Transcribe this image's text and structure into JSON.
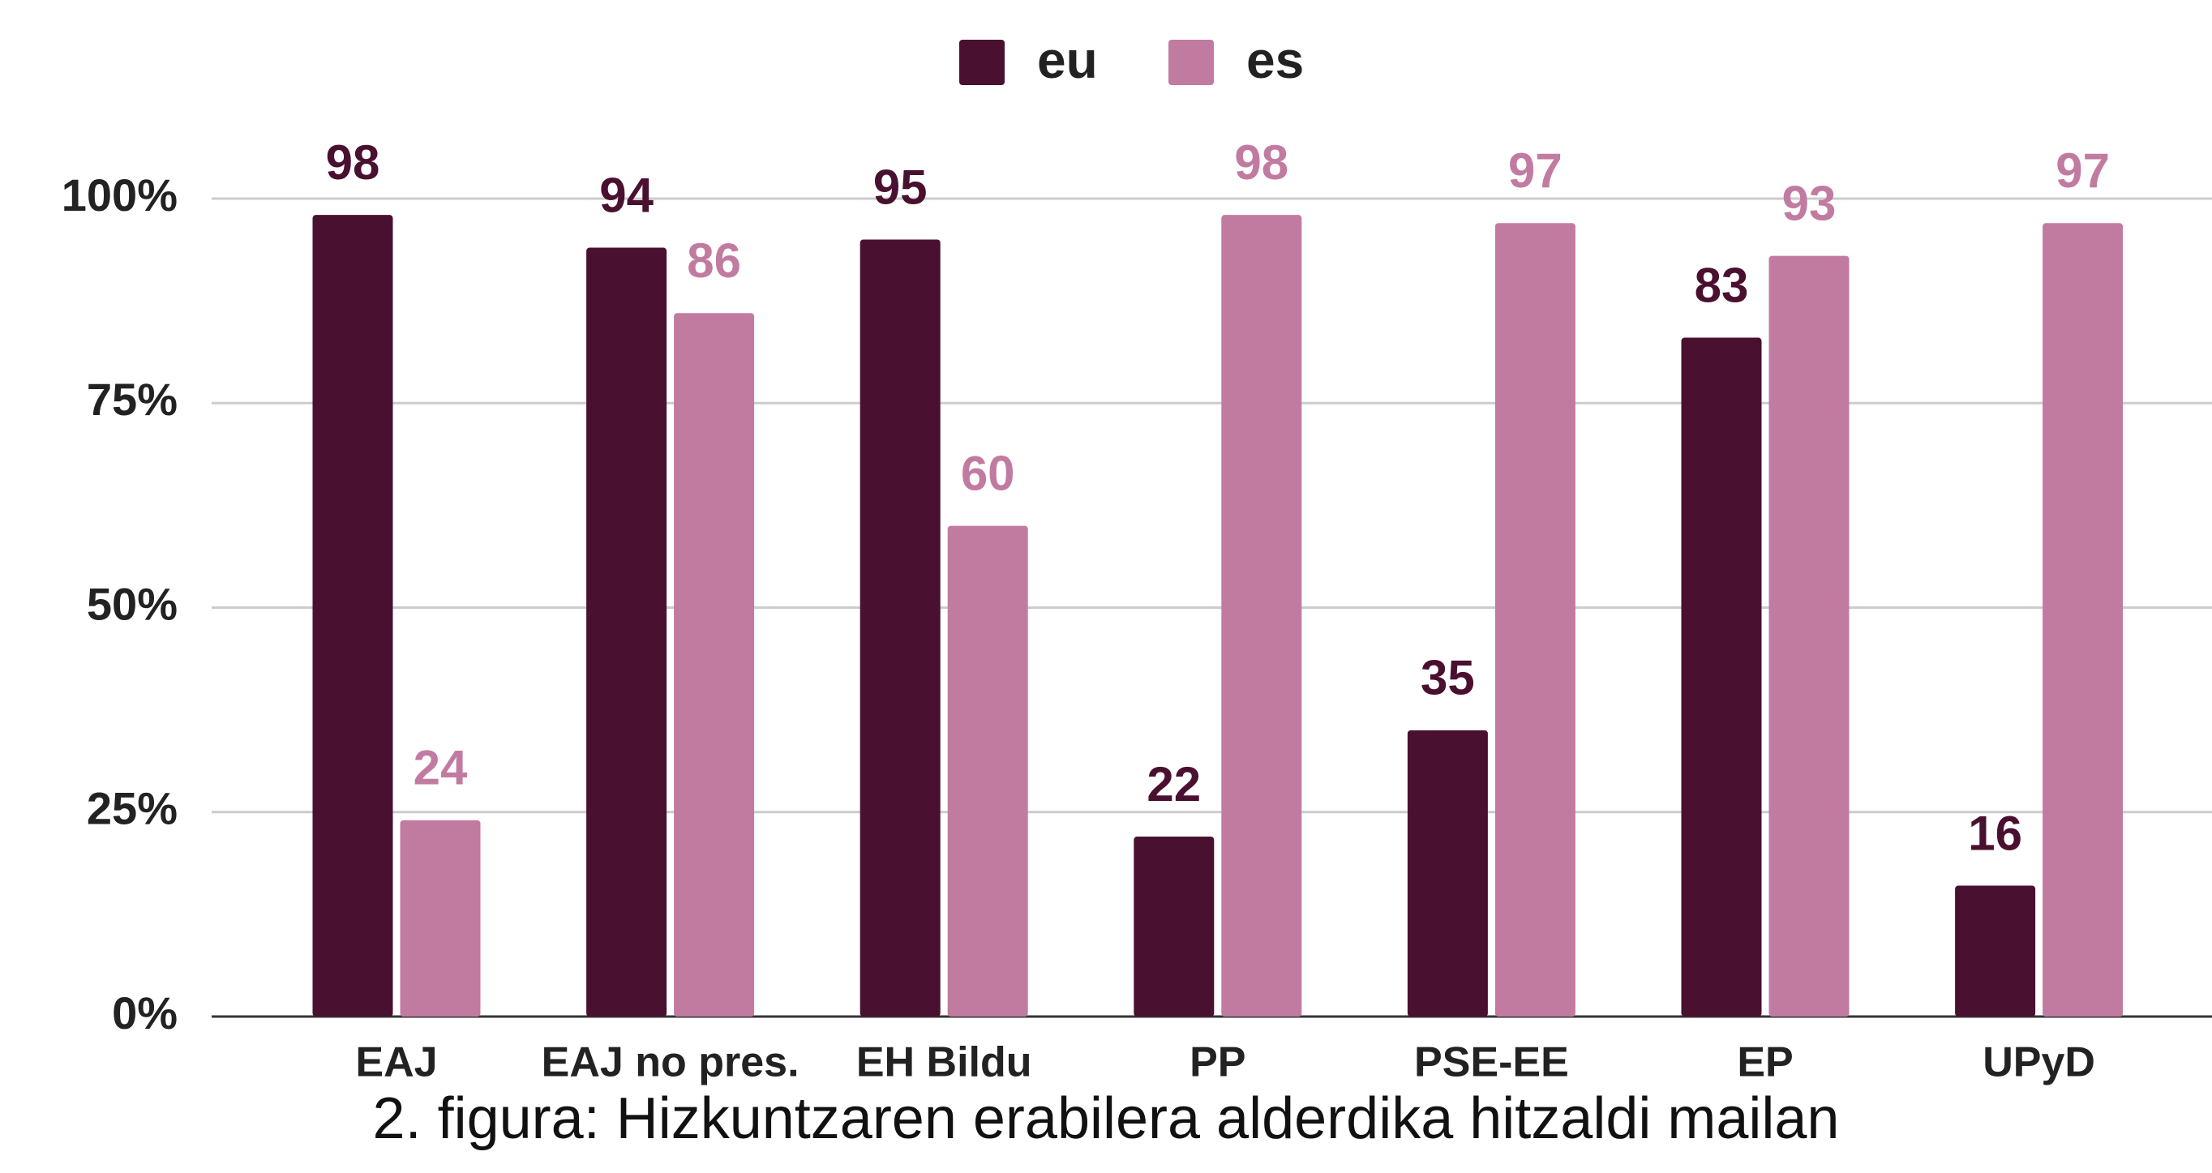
{
  "chart_data": {
    "type": "bar",
    "categories": [
      "EAJ",
      "EAJ no pres.",
      "EH Bildu",
      "PP",
      "PSE-EE",
      "EP",
      "UPyD"
    ],
    "series": [
      {
        "name": "eu",
        "color": "#4a1030",
        "values": [
          98,
          94,
          95,
          22,
          35,
          83,
          16
        ]
      },
      {
        "name": "es",
        "color": "#c27ba0",
        "values": [
          24,
          86,
          60,
          98,
          97,
          93,
          97
        ]
      }
    ],
    "ylim": [
      0,
      100
    ],
    "yticks": [
      {
        "value": 0,
        "label": "0%"
      },
      {
        "value": 25,
        "label": "25%"
      },
      {
        "value": 50,
        "label": "50%"
      },
      {
        "value": 75,
        "label": "75%"
      },
      {
        "value": 100,
        "label": "100%"
      }
    ],
    "grid": true,
    "legend": "top",
    "caption": "2. figura: Hizkuntzaren erabilera alderdika hitzaldi mailan"
  }
}
